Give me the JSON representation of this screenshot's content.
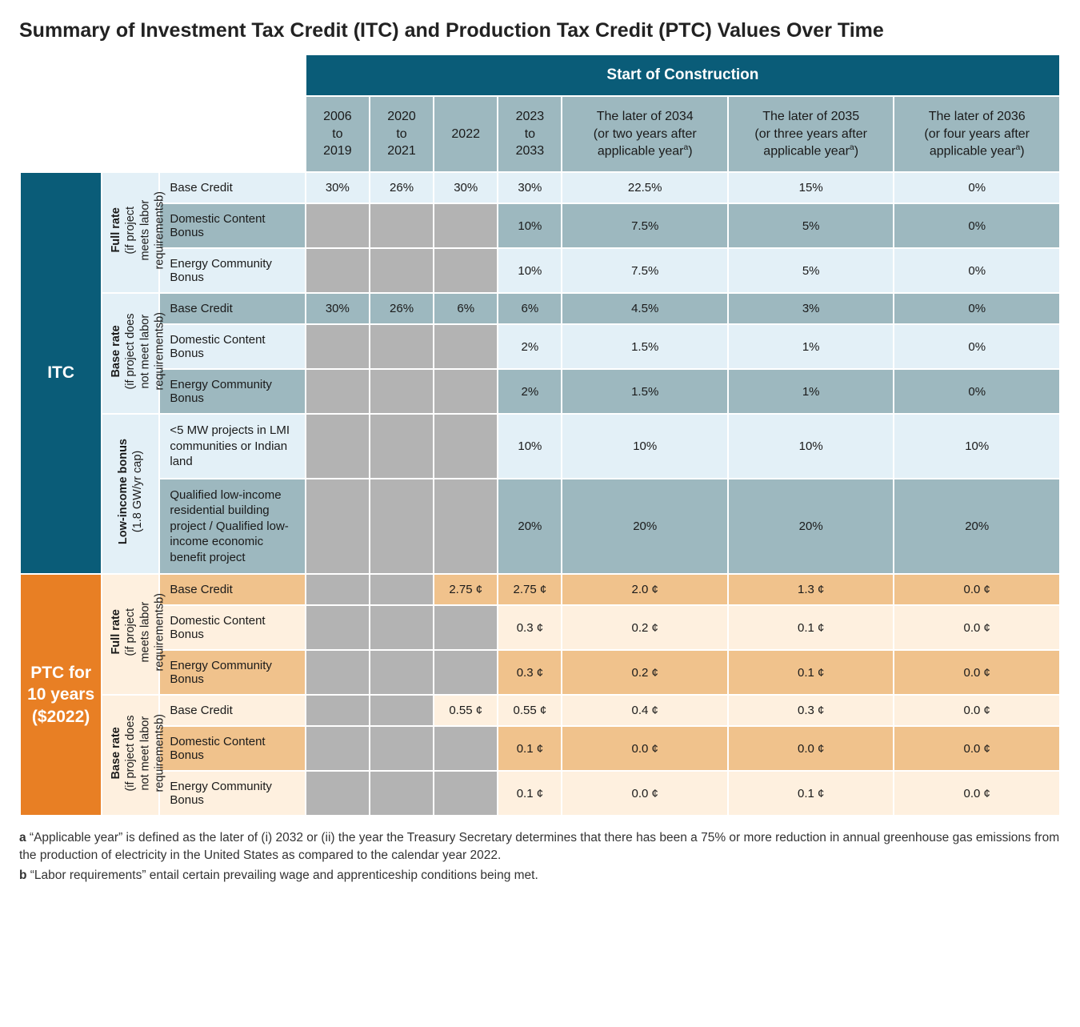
{
  "title": "Summary of Investment Tax Credit (ITC) and Production Tax Credit (PTC) Values Over Time",
  "top_header": "Start of Construction",
  "year_headers": [
    {
      "l1": "2006",
      "l2": "to",
      "l3": "2019"
    },
    {
      "l1": "2020",
      "l2": "to",
      "l3": "2021"
    },
    {
      "l1": "2022",
      "l2": "",
      "l3": ""
    },
    {
      "l1": "2023",
      "l2": "to",
      "l3": "2033"
    },
    {
      "l1": "The later of 2034",
      "l2": "(or two years after",
      "l3": "applicable year",
      "sup": "a",
      "l4": ")"
    },
    {
      "l1": "The later of 2035",
      "l2": "(or three years after",
      "l3": "applicable year",
      "sup": "a",
      "l4": ")"
    },
    {
      "l1": "The later of 2036",
      "l2": "(or four years after",
      "l3": "applicable year",
      "sup": "a",
      "l4": ")"
    }
  ],
  "side": {
    "itc": "ITC",
    "ptc_l1": "PTC for",
    "ptc_l2": "10 years",
    "ptc_l3": "($2022)"
  },
  "sub_labels": {
    "full_rate_b": "Full rate",
    "full_rate_s1": "(if project",
    "full_rate_s2": "meets labor",
    "full_rate_s3": "requirements",
    "full_rate_sup": "b",
    "full_rate_s4": ")",
    "base_rate_b": "Base rate",
    "base_rate_s1": "(if project does",
    "base_rate_s2": "not meet labor",
    "base_rate_s3": "requirements",
    "base_rate_sup": "b",
    "base_rate_s4": ")",
    "low_inc_b": "Low-income bonus",
    "low_inc_s": "(1.8 GW/yr cap)"
  },
  "rows": {
    "base_credit": "Base Credit",
    "dcb": "Domestic Content Bonus",
    "ecb": "Energy Community Bonus",
    "lmi": "<5 MW projects in LMI communities or Indian land",
    "qli": "Qualified low-income residential building project / Qualified low-income economic benefit project"
  },
  "itc_full": {
    "base": [
      "30%",
      "26%",
      "30%",
      "30%",
      "22.5%",
      "15%",
      "0%"
    ],
    "dcb": [
      "",
      "",
      "",
      "10%",
      "7.5%",
      "5%",
      "0%"
    ],
    "ecb": [
      "",
      "",
      "",
      "10%",
      "7.5%",
      "5%",
      "0%"
    ]
  },
  "itc_base": {
    "base": [
      "30%",
      "26%",
      "6%",
      "6%",
      "4.5%",
      "3%",
      "0%"
    ],
    "dcb": [
      "",
      "",
      "",
      "2%",
      "1.5%",
      "1%",
      "0%"
    ],
    "ecb": [
      "",
      "",
      "",
      "2%",
      "1.5%",
      "1%",
      "0%"
    ]
  },
  "itc_low": {
    "lmi": [
      "",
      "",
      "",
      "10%",
      "10%",
      "10%",
      "10%"
    ],
    "qli": [
      "",
      "",
      "",
      "20%",
      "20%",
      "20%",
      "20%"
    ]
  },
  "ptc_full": {
    "base": [
      "",
      "",
      "2.75 ¢",
      "2.75 ¢",
      "2.0 ¢",
      "1.3 ¢",
      "0.0 ¢"
    ],
    "dcb": [
      "",
      "",
      "",
      "0.3 ¢",
      "0.2 ¢",
      "0.1 ¢",
      "0.0 ¢"
    ],
    "ecb": [
      "",
      "",
      "",
      "0.3 ¢",
      "0.2 ¢",
      "0.1 ¢",
      "0.0 ¢"
    ]
  },
  "ptc_base": {
    "base": [
      "",
      "",
      "0.55 ¢",
      "0.55 ¢",
      "0.4 ¢",
      "0.3 ¢",
      "0.0 ¢"
    ],
    "dcb": [
      "",
      "",
      "",
      "0.1 ¢",
      "0.0 ¢",
      "0.0 ¢",
      "0.0 ¢"
    ],
    "ecb": [
      "",
      "",
      "",
      "0.1 ¢",
      "0.0 ¢",
      "0.1 ¢",
      "0.0 ¢"
    ]
  },
  "footnotes": {
    "a_b": "a",
    "a_t": " “Applicable year” is defined as the later of (i) 2032 or (ii) the year the Treasury Secretary determines that there has been a 75% or more reduction in annual greenhouse gas emissions from the production of electricity in the United States as compared to the calendar year 2022.",
    "b_b": "b",
    "b_t": " “Labor requirements” entail certain prevailing wage and apprenticeship conditions being met."
  },
  "colors": {
    "itc_blue": "#0a5c78",
    "ptc_orange": "#e87f24",
    "itc_light": "#e3f0f7",
    "itc_mid": "#9db8bf",
    "ptc_light": "#fef0df",
    "ptc_mid": "#f0c28c",
    "gray": "#b3b3b3",
    "white": "#ffffff"
  }
}
